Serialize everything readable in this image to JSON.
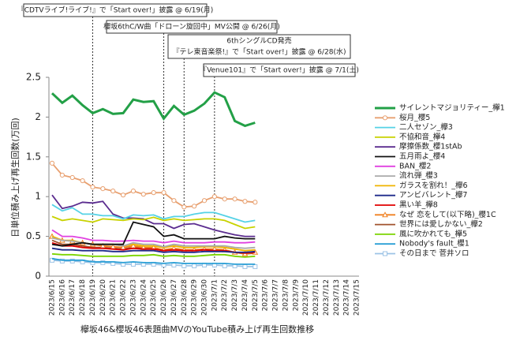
{
  "chart_data": {
    "type": "line",
    "ylabel": "日単位積み上げ再生回数(万回)",
    "xlabel": "欅坂46&櫻坂46表題曲MVのYouTube積み上げ再生回数推移",
    "categories": [
      "2023/6/15",
      "2023/6/16",
      "2023/6/17",
      "2023/6/18",
      "2023/6/19",
      "2023/6/20",
      "2023/6/21",
      "2023/6/22",
      "2023/6/23",
      "2023/6/24",
      "2023/6/25",
      "2023/6/26",
      "2023/6/27",
      "2023/6/28",
      "2023/6/29",
      "2023/6/30",
      "2023/7/1",
      "2023/7/2",
      "2023/7/3",
      "2023/7/4",
      "2023/7/5",
      "2023/7/6",
      "2023/7/7",
      "2023/7/8",
      "2023/7/9",
      "2023/7/10",
      "2023/7/11",
      "2023/7/12",
      "2023/7/13",
      "2023/7/14",
      "2023/7/15"
    ],
    "ylim": [
      0,
      2.5
    ],
    "yticks": [
      0,
      0.5,
      1,
      1.5,
      2,
      2.5
    ],
    "grid": false,
    "legend": "right",
    "annotations": [
      {
        "text": [
          "『CDTVライブ!ライブ!』で「Start over!」披露 @ 6/19(月)"
        ],
        "x": "2023/6/19"
      },
      {
        "text": [
          "櫻坂6thC/W曲「ドローン旋回中」MV公開 @ 6/26(月)"
        ],
        "x": "2023/6/26"
      },
      {
        "text": [
          "6thシングルCD発売",
          "『テレ東音楽祭!』で「Start over!」披露 @ 6/28(水)"
        ],
        "x": "2023/6/28"
      },
      {
        "text": [
          "『Venue101』で「Start over!」披露 @ 7/1(土)"
        ],
        "x": "2023/7/1"
      }
    ],
    "series": [
      {
        "name": "サイレントマジョリティー_欅1",
        "color": "#23a047",
        "linewidth": 3,
        "values": [
          2.3,
          2.18,
          2.27,
          2.15,
          2.05,
          2.1,
          2.04,
          2.05,
          2.22,
          2.19,
          2.2,
          1.98,
          2.14,
          2.03,
          2.08,
          2.17,
          2.31,
          2.25,
          1.95,
          1.89,
          1.93,
          null,
          null,
          null,
          null,
          null,
          null,
          null,
          null,
          null,
          null
        ]
      },
      {
        "name": "桜月_櫻5",
        "color": "#e8a070",
        "marker": "circle",
        "values": [
          1.42,
          1.27,
          1.24,
          1.2,
          1.12,
          1.1,
          1.07,
          1.02,
          1.07,
          1.03,
          1.05,
          1.05,
          0.95,
          0.87,
          0.88,
          0.95,
          1.0,
          0.97,
          0.97,
          0.94,
          0.93,
          null,
          null,
          null,
          null,
          null,
          null,
          null,
          null,
          null,
          null
        ]
      },
      {
        "name": "二人セゾン_欅3",
        "color": "#55d2e6",
        "values": [
          0.9,
          0.82,
          0.86,
          0.78,
          0.78,
          0.76,
          0.76,
          0.72,
          0.77,
          0.76,
          0.77,
          0.72,
          0.75,
          0.75,
          0.78,
          0.8,
          0.8,
          0.76,
          0.72,
          0.68,
          0.7,
          null,
          null,
          null,
          null,
          null,
          null,
          null,
          null,
          null,
          null
        ]
      },
      {
        "name": "不協和音_欅4",
        "color": "#c8d200",
        "values": [
          0.75,
          0.7,
          0.72,
          0.7,
          0.68,
          0.72,
          0.71,
          0.7,
          0.72,
          0.71,
          0.74,
          0.7,
          0.72,
          0.7,
          0.71,
          0.72,
          0.72,
          0.7,
          0.65,
          0.6,
          0.62,
          null,
          null,
          null,
          null,
          null,
          null,
          null,
          null,
          null,
          null
        ]
      },
      {
        "name": "摩擦係数_櫻1stAb",
        "color": "#5b2c8f",
        "values": [
          1.02,
          0.85,
          0.88,
          0.93,
          0.92,
          0.94,
          0.78,
          0.73,
          0.73,
          0.72,
          0.66,
          0.66,
          0.6,
          0.65,
          0.66,
          0.62,
          0.58,
          0.55,
          0.52,
          0.5,
          0.5,
          null,
          null,
          null,
          null,
          null,
          null,
          null,
          null,
          null,
          null
        ]
      },
      {
        "name": "五月雨よ_櫻4",
        "color": "#111111",
        "values": [
          0.4,
          0.38,
          0.4,
          0.42,
          0.4,
          0.4,
          0.4,
          0.4,
          0.68,
          0.65,
          0.62,
          0.5,
          0.52,
          0.47,
          0.47,
          0.47,
          0.47,
          0.5,
          0.48,
          0.47,
          0.47,
          null,
          null,
          null,
          null,
          null,
          null,
          null,
          null,
          null,
          null
        ]
      },
      {
        "name": "BAN_櫻2",
        "color": "#e040e0",
        "values": [
          0.58,
          0.5,
          0.5,
          0.48,
          0.45,
          0.45,
          0.44,
          0.44,
          0.45,
          0.44,
          0.44,
          0.42,
          0.44,
          0.42,
          0.42,
          0.42,
          0.43,
          0.43,
          0.42,
          0.42,
          0.43,
          null,
          null,
          null,
          null,
          null,
          null,
          null,
          null,
          null,
          null
        ]
      },
      {
        "name": "流れ弾_櫻3",
        "color": "#aaaaaa",
        "values": [
          0.48,
          0.45,
          0.44,
          0.42,
          0.4,
          0.4,
          0.4,
          0.38,
          0.42,
          0.4,
          0.4,
          0.37,
          0.4,
          0.38,
          0.38,
          0.38,
          0.38,
          0.38,
          0.36,
          0.35,
          0.36,
          null,
          null,
          null,
          null,
          null,
          null,
          null,
          null,
          null,
          null
        ]
      },
      {
        "name": "ガラスを割れ！_欅6",
        "color": "#f0b400",
        "values": [
          0.5,
          0.45,
          0.45,
          0.42,
          0.4,
          0.4,
          0.4,
          0.38,
          0.4,
          0.38,
          0.38,
          0.36,
          0.38,
          0.36,
          0.36,
          0.37,
          0.37,
          0.36,
          0.34,
          0.32,
          0.33,
          null,
          null,
          null,
          null,
          null,
          null,
          null,
          null,
          null,
          null
        ]
      },
      {
        "name": "アンビバレント_欅7",
        "color": "#1f2a8a",
        "values": [
          0.35,
          0.33,
          0.33,
          0.32,
          0.32,
          0.32,
          0.31,
          0.31,
          0.32,
          0.32,
          0.32,
          0.3,
          0.31,
          0.3,
          0.3,
          0.31,
          0.31,
          0.31,
          0.3,
          0.3,
          0.31,
          null,
          null,
          null,
          null,
          null,
          null,
          null,
          null,
          null,
          null
        ]
      },
      {
        "name": "黒い羊_欅8",
        "color": "#e00000",
        "values": [
          0.42,
          0.38,
          0.38,
          0.36,
          0.35,
          0.35,
          0.34,
          0.33,
          0.35,
          0.34,
          0.34,
          0.32,
          0.33,
          0.32,
          0.32,
          0.33,
          0.32,
          0.32,
          0.3,
          0.29,
          0.3,
          null,
          null,
          null,
          null,
          null,
          null,
          null,
          null,
          null,
          null
        ]
      },
      {
        "name": "なぜ 恋をして(以下略)_櫻1C",
        "color": "#f08020",
        "marker": "triangle",
        "values": [
          0.5,
          0.45,
          0.44,
          0.42,
          0.4,
          0.38,
          0.37,
          0.36,
          0.38,
          0.36,
          0.36,
          0.33,
          0.35,
          0.33,
          0.33,
          0.34,
          0.34,
          0.33,
          0.3,
          0.28,
          0.3,
          null,
          null,
          null,
          null,
          null,
          null,
          null,
          null,
          null,
          null
        ]
      },
      {
        "name": "世界には愛しかない_欅2",
        "color": "#a0522d",
        "values": [
          0.45,
          0.4,
          0.4,
          0.38,
          0.36,
          0.36,
          0.35,
          0.34,
          0.36,
          0.35,
          0.35,
          0.32,
          0.34,
          0.32,
          0.32,
          0.33,
          0.33,
          0.32,
          0.3,
          0.28,
          0.29,
          null,
          null,
          null,
          null,
          null,
          null,
          null,
          null,
          null,
          null
        ]
      },
      {
        "name": "風に吹かれても_欅5",
        "color": "#7bd400",
        "values": [
          0.28,
          0.27,
          0.27,
          0.26,
          0.25,
          0.25,
          0.25,
          0.25,
          0.26,
          0.26,
          0.27,
          0.25,
          0.26,
          0.25,
          0.25,
          0.26,
          0.27,
          0.27,
          0.25,
          0.24,
          0.25,
          null,
          null,
          null,
          null,
          null,
          null,
          null,
          null,
          null,
          null
        ]
      },
      {
        "name": "Nobody's fault_櫻1",
        "color": "#2a9fd6",
        "values": [
          0.22,
          0.2,
          0.2,
          0.2,
          0.18,
          0.18,
          0.18,
          0.17,
          0.18,
          0.17,
          0.17,
          0.16,
          0.17,
          0.16,
          0.16,
          0.16,
          0.16,
          0.16,
          0.15,
          0.15,
          0.15,
          null,
          null,
          null,
          null,
          null,
          null,
          null,
          null,
          null,
          null
        ]
      },
      {
        "name": "その日まで 菅井ソロ",
        "color": "#9cc3e6",
        "marker": "square",
        "values": [
          0.2,
          0.19,
          0.19,
          0.18,
          0.17,
          0.17,
          0.16,
          0.15,
          0.15,
          0.15,
          0.15,
          0.14,
          0.14,
          0.13,
          0.13,
          0.14,
          0.14,
          0.13,
          0.13,
          0.12,
          0.12,
          null,
          null,
          null,
          null,
          null,
          null,
          null,
          null,
          null,
          null
        ]
      }
    ]
  }
}
